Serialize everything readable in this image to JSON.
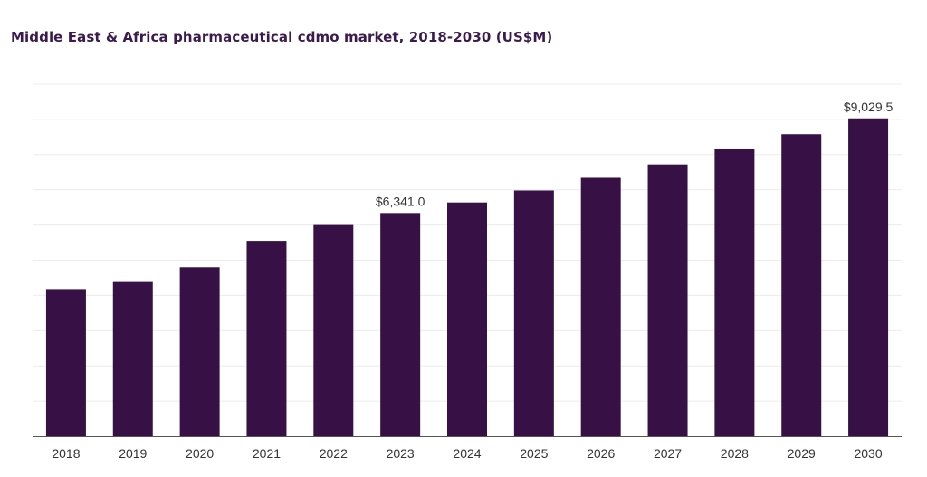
{
  "chart_data": {
    "type": "bar",
    "title": "Middle East & Africa pharmaceutical cdmo market, 2018-2030 (US$M)",
    "xlabel": "",
    "ylabel": "",
    "categories": [
      "2018",
      "2019",
      "2020",
      "2021",
      "2022",
      "2023",
      "2024",
      "2025",
      "2026",
      "2027",
      "2028",
      "2029",
      "2030"
    ],
    "values": [
      4180,
      4380,
      4800,
      5550,
      6000,
      6341.0,
      6640,
      6980,
      7340,
      7720,
      8150,
      8580,
      9029.5
    ],
    "data_labels": {
      "2023": "$6,341.0",
      "2030": "$9,029.5"
    },
    "ylim": [
      0,
      10000
    ],
    "gridlines": true,
    "legend": "none",
    "colors": {
      "bar": "#371145",
      "grid": "#ececec",
      "axis": "#555555",
      "title": "#3b1a4d"
    }
  }
}
